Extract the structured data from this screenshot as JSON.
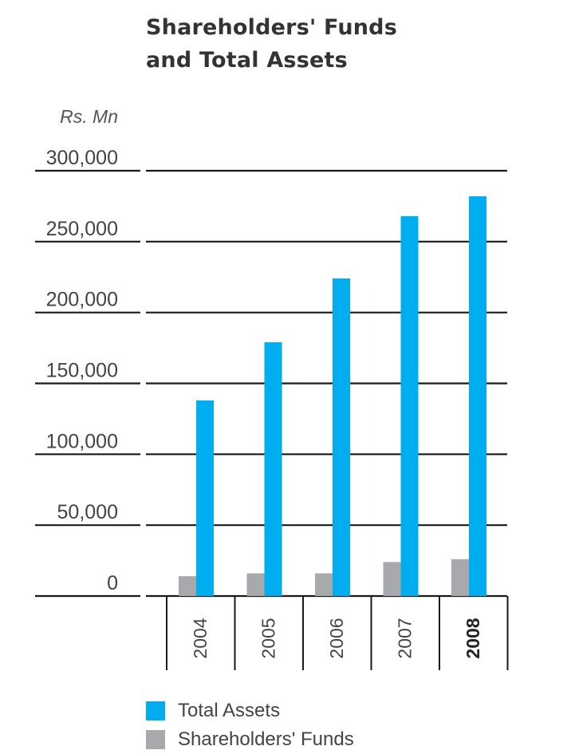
{
  "chart_data": {
    "type": "bar",
    "title": [
      "Shareholders' Funds",
      "and Total Assets"
    ],
    "ylabel": "Rs. Mn",
    "categories": [
      "2004",
      "2005",
      "2006",
      "2007",
      "2008"
    ],
    "highlight_category": "2008",
    "series": [
      {
        "name": "Total Assets",
        "color": "#00aeef",
        "values": [
          138000,
          179000,
          224000,
          268000,
          282000
        ]
      },
      {
        "name": "Shareholders' Funds",
        "color": "#a7a9ac",
        "values": [
          14000,
          16000,
          16000,
          24000,
          26000
        ]
      }
    ],
    "yticks": [
      "300,000",
      "250,000",
      "200,000",
      "150,000",
      "100,000",
      "50,000",
      "0"
    ],
    "ylim": [
      0,
      300000
    ],
    "grid": true,
    "legend_position": "bottom"
  }
}
